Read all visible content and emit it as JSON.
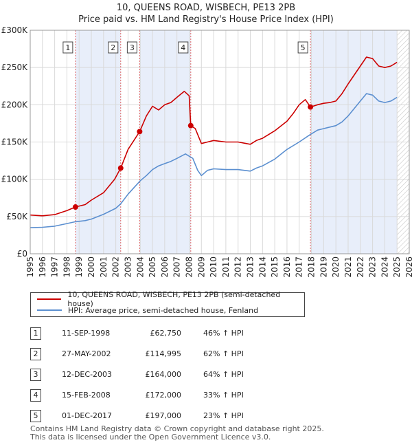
{
  "title": "10, QUEENS ROAD, WISBECH, PE13 2PB",
  "subtitle": "Price paid vs. HM Land Registry's House Price Index (HPI)",
  "chart_data": {
    "type": "line",
    "title": "10, QUEENS ROAD, WISBECH, PE13 2PB",
    "subtitle": "Price paid vs. HM Land Registry's House Price Index (HPI)",
    "xlabel": "",
    "ylabel": "",
    "xlim": [
      1995,
      2026
    ],
    "ylim": [
      0,
      300000
    ],
    "y_ticks": [
      0,
      50000,
      100000,
      150000,
      200000,
      250000,
      300000
    ],
    "y_tick_labels": [
      "£0",
      "£50K",
      "£100K",
      "£150K",
      "£200K",
      "£250K",
      "£300K"
    ],
    "x_ticks": [
      1995,
      1996,
      1997,
      1998,
      1999,
      2000,
      2001,
      2002,
      2003,
      2004,
      2005,
      2006,
      2007,
      2008,
      2009,
      2010,
      2011,
      2012,
      2013,
      2014,
      2015,
      2016,
      2017,
      2018,
      2019,
      2020,
      2021,
      2022,
      2023,
      2024,
      2025,
      2026
    ],
    "x_tick_labels": [
      "1995",
      "1996",
      "1997",
      "1998",
      "1999",
      "2000",
      "2001",
      "2002",
      "2003",
      "2004",
      "2005",
      "2006",
      "2007",
      "2008",
      "2009",
      "2010",
      "2011",
      "2012",
      "2013",
      "2014",
      "2015",
      "2016",
      "2017",
      "2018",
      "2019",
      "2020",
      "2021",
      "2022",
      "2023",
      "2024",
      "2025",
      "2026"
    ],
    "grid": true,
    "colors": {
      "property": "#cc0000",
      "hpi": "#5b8fd0",
      "shade": "#e8eefa",
      "vline": "#e06666",
      "grid": "#d9d9d9"
    },
    "series": [
      {
        "name": "10, QUEENS ROAD, WISBECH, PE13 2PB (semi-detached house)",
        "color": "#cc0000",
        "points": [
          [
            1995.0,
            52000
          ],
          [
            1996.0,
            51000
          ],
          [
            1997.0,
            52500
          ],
          [
            1998.0,
            58000
          ],
          [
            1998.7,
            62750
          ],
          [
            1999.5,
            66000
          ],
          [
            2000.0,
            72000
          ],
          [
            2001.0,
            82000
          ],
          [
            2001.9,
            100000
          ],
          [
            2002.4,
            114995
          ],
          [
            2003.0,
            140000
          ],
          [
            2003.95,
            164000
          ],
          [
            2004.5,
            185000
          ],
          [
            2005.0,
            198000
          ],
          [
            2005.5,
            193000
          ],
          [
            2006.0,
            200000
          ],
          [
            2006.5,
            203000
          ],
          [
            2007.0,
            210000
          ],
          [
            2007.6,
            218000
          ],
          [
            2008.0,
            212000
          ],
          [
            2008.13,
            172000
          ],
          [
            2008.5,
            168000
          ],
          [
            2009.0,
            148000
          ],
          [
            2009.5,
            150000
          ],
          [
            2010.0,
            152000
          ],
          [
            2011.0,
            150000
          ],
          [
            2012.0,
            150000
          ],
          [
            2013.0,
            147000
          ],
          [
            2013.5,
            152000
          ],
          [
            2014.0,
            155000
          ],
          [
            2015.0,
            165000
          ],
          [
            2016.0,
            178000
          ],
          [
            2016.5,
            188000
          ],
          [
            2017.0,
            200000
          ],
          [
            2017.5,
            207000
          ],
          [
            2017.92,
            197000
          ],
          [
            2018.5,
            200000
          ],
          [
            2019.0,
            202000
          ],
          [
            2019.5,
            203000
          ],
          [
            2020.0,
            205000
          ],
          [
            2020.5,
            215000
          ],
          [
            2021.0,
            228000
          ],
          [
            2021.5,
            240000
          ],
          [
            2022.0,
            252000
          ],
          [
            2022.5,
            264000
          ],
          [
            2023.0,
            262000
          ],
          [
            2023.5,
            252000
          ],
          [
            2024.0,
            250000
          ],
          [
            2024.5,
            252000
          ],
          [
            2025.0,
            257000
          ]
        ]
      },
      {
        "name": "HPI: Average price, semi-detached house, Fenland",
        "color": "#5b8fd0",
        "points": [
          [
            1995.0,
            35000
          ],
          [
            1996.0,
            35500
          ],
          [
            1997.0,
            37000
          ],
          [
            1998.0,
            40500
          ],
          [
            1998.7,
            43000
          ],
          [
            1999.5,
            44500
          ],
          [
            2000.0,
            46500
          ],
          [
            2001.0,
            53000
          ],
          [
            2002.0,
            61000
          ],
          [
            2002.4,
            67000
          ],
          [
            2003.0,
            80000
          ],
          [
            2004.0,
            98000
          ],
          [
            2004.5,
            105000
          ],
          [
            2005.0,
            113000
          ],
          [
            2005.5,
            118000
          ],
          [
            2006.0,
            121000
          ],
          [
            2006.5,
            124000
          ],
          [
            2007.0,
            128000
          ],
          [
            2007.7,
            134000
          ],
          [
            2008.3,
            128000
          ],
          [
            2008.7,
            112000
          ],
          [
            2009.0,
            105000
          ],
          [
            2009.5,
            112000
          ],
          [
            2010.0,
            114000
          ],
          [
            2011.0,
            113000
          ],
          [
            2012.0,
            113000
          ],
          [
            2013.0,
            111000
          ],
          [
            2013.5,
            115000
          ],
          [
            2014.0,
            118000
          ],
          [
            2015.0,
            127000
          ],
          [
            2016.0,
            140000
          ],
          [
            2017.0,
            150000
          ],
          [
            2017.9,
            160000
          ],
          [
            2018.5,
            166000
          ],
          [
            2019.0,
            168000
          ],
          [
            2019.5,
            170000
          ],
          [
            2020.0,
            172000
          ],
          [
            2020.5,
            177000
          ],
          [
            2021.0,
            185000
          ],
          [
            2021.5,
            195000
          ],
          [
            2022.0,
            205000
          ],
          [
            2022.5,
            215000
          ],
          [
            2023.0,
            213000
          ],
          [
            2023.5,
            205000
          ],
          [
            2024.0,
            203000
          ],
          [
            2024.5,
            205000
          ],
          [
            2025.0,
            210000
          ]
        ]
      }
    ],
    "sales": [
      {
        "num": "1",
        "x": 1998.7,
        "price": 62750
      },
      {
        "num": "2",
        "x": 2002.4,
        "price": 114995
      },
      {
        "num": "3",
        "x": 2003.95,
        "price": 164000
      },
      {
        "num": "4",
        "x": 2008.13,
        "price": 172000
      },
      {
        "num": "5",
        "x": 2017.92,
        "price": 197000
      }
    ],
    "shaded_periods": [
      [
        1998.7,
        2002.4
      ],
      [
        2003.95,
        2008.13
      ],
      [
        2017.92,
        2025.0
      ]
    ],
    "future_hatch_from": 2025.0
  },
  "legend": {
    "property_label": "10, QUEENS ROAD, WISBECH, PE13 2PB (semi-detached house)",
    "hpi_label": "HPI: Average price, semi-detached house, Fenland"
  },
  "transactions": [
    {
      "num": "1",
      "date": "11-SEP-1998",
      "price": "£62,750",
      "hpi": "46% ↑ HPI"
    },
    {
      "num": "2",
      "date": "27-MAY-2002",
      "price": "£114,995",
      "hpi": "62% ↑ HPI"
    },
    {
      "num": "3",
      "date": "12-DEC-2003",
      "price": "£164,000",
      "hpi": "64% ↑ HPI"
    },
    {
      "num": "4",
      "date": "15-FEB-2008",
      "price": "£172,000",
      "hpi": "33% ↑ HPI"
    },
    {
      "num": "5",
      "date": "01-DEC-2017",
      "price": "£197,000",
      "hpi": "23% ↑ HPI"
    }
  ],
  "footer": {
    "line1": "Contains HM Land Registry data © Crown copyright and database right 2025.",
    "line2": "This data is licensed under the Open Government Licence v3.0."
  }
}
